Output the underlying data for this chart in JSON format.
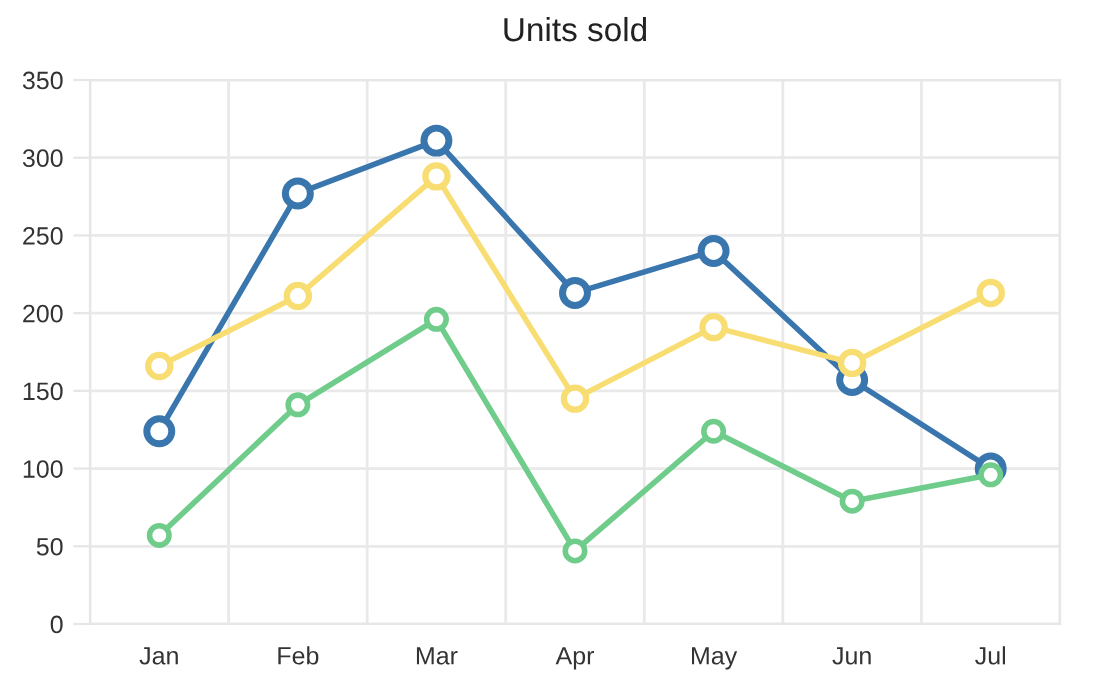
{
  "chart_data": {
    "type": "line",
    "title": "Units sold",
    "categories": [
      "Jan",
      "Feb",
      "Mar",
      "Apr",
      "May",
      "Jun",
      "Jul"
    ],
    "series": [
      {
        "color": "#3a76ae",
        "values": [
          124,
          277,
          311,
          213,
          240,
          157,
          100
        ]
      },
      {
        "color": "#f8dd72",
        "values": [
          166,
          211,
          288,
          145,
          191,
          168,
          213
        ]
      },
      {
        "color": "#6fcc8a",
        "values": [
          57,
          141,
          196,
          47,
          124,
          79,
          96
        ]
      }
    ],
    "ylim": [
      0,
      350
    ],
    "yticks": [
      0,
      50,
      100,
      150,
      200,
      250,
      300,
      350
    ],
    "grid": true,
    "marker": "circle",
    "line_style": "solid"
  }
}
